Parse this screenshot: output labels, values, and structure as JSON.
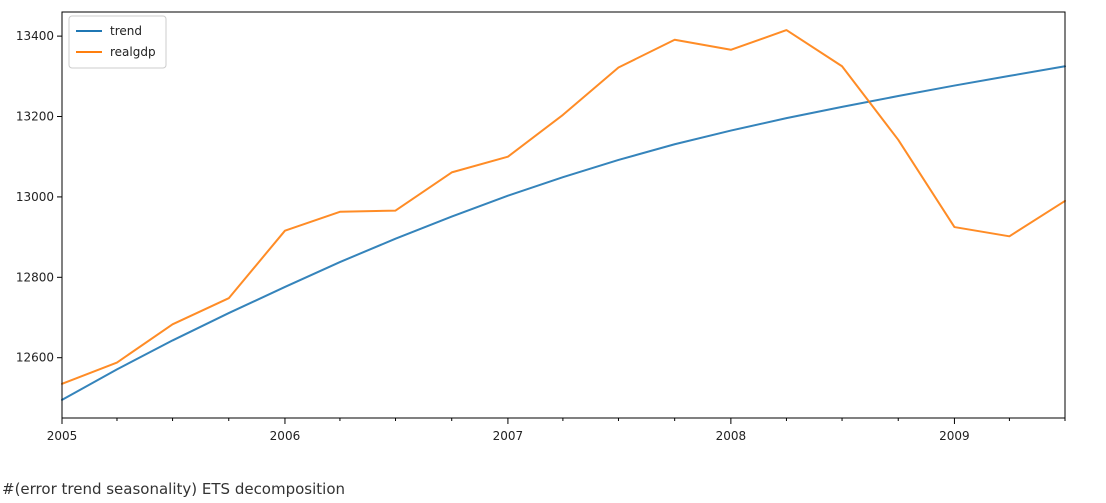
{
  "chart_data": {
    "type": "line",
    "title": "",
    "xlabel": "",
    "ylabel": "",
    "x": [
      "2005-01-01",
      "2005-04-01",
      "2005-07-01",
      "2005-10-01",
      "2006-01-01",
      "2006-04-01",
      "2006-07-01",
      "2006-10-01",
      "2007-01-01",
      "2007-04-01",
      "2007-07-01",
      "2007-10-01",
      "2008-01-01",
      "2008-04-01",
      "2008-07-01",
      "2008-10-01",
      "2009-01-01",
      "2009-04-01",
      "2009-07-01"
    ],
    "xlim": [
      "2005-01-01",
      "2009-07-01"
    ],
    "ylim": [
      12450,
      13460
    ],
    "x_ticks": [
      "2005-01-01",
      "2006-01-01",
      "2007-01-01",
      "2008-01-01",
      "2009-01-01"
    ],
    "x_tick_labels": [
      "2005",
      "2006",
      "2007",
      "2008",
      "2009"
    ],
    "y_ticks": [
      12600,
      12800,
      13000,
      13200,
      13400
    ],
    "y_tick_labels": [
      "12600",
      "12800",
      "13000",
      "13200",
      "13400"
    ],
    "grid": false,
    "legend_position": "top-left",
    "series": [
      {
        "name": "trend",
        "color": "#1f77b4",
        "values": [
          12495,
          12571,
          12643,
          12711,
          12776,
          12838,
          12896,
          12951,
          13003,
          13049,
          13092,
          13131,
          13165,
          13196,
          13224,
          13251,
          13277,
          13301,
          13325
        ]
      },
      {
        "name": "realgdp",
        "color": "#ff7f0e",
        "values": [
          12535,
          12588,
          12683,
          12748,
          12916,
          12963,
          12966,
          13061,
          13100,
          13204,
          13322,
          13391,
          13366,
          13415,
          13325,
          13142,
          12925,
          12902,
          12990
        ]
      }
    ]
  },
  "caption": "#(error trend seasonality) ETS decomposition"
}
